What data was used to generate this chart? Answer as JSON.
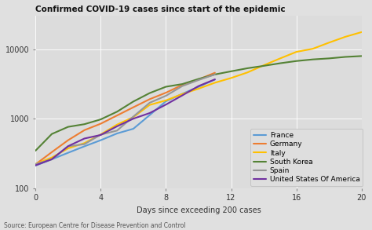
{
  "title": "Confirmed COVID-19 cases since start of the epidemic",
  "xlabel": "Days since exceeding 200 cases",
  "source": "Source: European Centre for Disease Prevention and Control",
  "background_color": "#e0e0e0",
  "plot_bg_color": "#dcdcdc",
  "xlim": [
    0,
    20
  ],
  "ylim": [
    100,
    30000
  ],
  "countries": {
    "France": {
      "color": "#5b9bd5",
      "days": [
        0,
        1,
        2,
        3,
        4,
        5,
        6,
        7,
        8,
        9,
        10,
        11
      ],
      "cases": [
        211,
        260,
        323,
        400,
        490,
        613,
        716,
        1126,
        1784,
        2281,
        2876,
        3661
      ]
    },
    "Germany": {
      "color": "#ed7d31",
      "days": [
        0,
        1,
        2,
        3,
        4,
        5,
        6,
        7,
        8,
        9,
        10,
        11
      ],
      "cases": [
        220,
        330,
        490,
        684,
        847,
        1112,
        1460,
        1908,
        2369,
        3062,
        3675,
        4585
      ]
    },
    "Italy": {
      "color": "#ffc000",
      "days": [
        0,
        1,
        2,
        3,
        4,
        5,
        6,
        7,
        8,
        9,
        10,
        11,
        12,
        13,
        14,
        15,
        16,
        17,
        18,
        19,
        20
      ],
      "cases": [
        222,
        276,
        374,
        445,
        593,
        821,
        1053,
        1577,
        1835,
        2263,
        2706,
        3296,
        3858,
        4636,
        5883,
        7375,
        9172,
        10149,
        12462,
        15113,
        17660
      ]
    },
    "South Korea": {
      "color": "#548235",
      "days": [
        0,
        1,
        2,
        3,
        4,
        5,
        6,
        7,
        8,
        9,
        10,
        11,
        12,
        13,
        14,
        15,
        16,
        17,
        18,
        19,
        20
      ],
      "cases": [
        346,
        602,
        763,
        833,
        977,
        1261,
        1766,
        2337,
        2885,
        3150,
        3736,
        4335,
        4812,
        5328,
        5766,
        6284,
        6767,
        7134,
        7382,
        7755,
        7979
      ]
    },
    "Spain": {
      "color": "#969696",
      "days": [
        0,
        1,
        2,
        3,
        4,
        5,
        6,
        7,
        8,
        9,
        10,
        11
      ],
      "cases": [
        222,
        259,
        400,
        430,
        589,
        674,
        1073,
        1695,
        2140,
        2950,
        3604,
        4334
      ]
    },
    "United States Of America": {
      "color": "#7030a0",
      "days": [
        0,
        1,
        2,
        3,
        4,
        5,
        6,
        7,
        8,
        9,
        10,
        11
      ],
      "cases": [
        213,
        261,
        402,
        518,
        583,
        777,
        1000,
        1205,
        1598,
        2163,
        2952,
        3680
      ]
    }
  },
  "title_fontsize": 7.5,
  "label_fontsize": 7,
  "tick_fontsize": 7,
  "legend_fontsize": 6.5,
  "source_fontsize": 5.5
}
